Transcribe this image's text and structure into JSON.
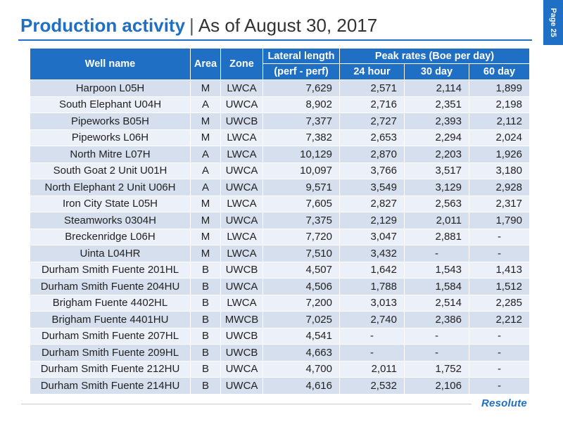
{
  "header": {
    "title_main": "Production activity",
    "title_separator": "|",
    "title_date": "As of August 30, 2017",
    "page_label": "Page 25"
  },
  "table": {
    "columns": {
      "well_name": "Well name",
      "area": "Area",
      "zone": "Zone",
      "lateral_length_line1": "Lateral length",
      "lateral_length_line2": "(perf - perf)",
      "peak_rates": "Peak rates (Boe per day)",
      "h24": "24 hour",
      "d30": "30 day",
      "d60": "60 day"
    },
    "rows": [
      {
        "name": "Harpoon L05H",
        "area": "M",
        "zone": "LWCA",
        "lateral": "7,629",
        "h24": "2,571",
        "d30": "2,114",
        "d60": "1,899"
      },
      {
        "name": "South Elephant U04H",
        "area": "A",
        "zone": "UWCA",
        "lateral": "8,902",
        "h24": "2,716",
        "d30": "2,351",
        "d60": "2,198"
      },
      {
        "name": "Pipeworks B05H",
        "area": "M",
        "zone": "UWCB",
        "lateral": "7,377",
        "h24": "2,727",
        "d30": "2,393",
        "d60": "2,112"
      },
      {
        "name": "Pipeworks L06H",
        "area": "M",
        "zone": "LWCA",
        "lateral": "7,382",
        "h24": "2,653",
        "d30": "2,294",
        "d60": "2,024"
      },
      {
        "name": "North Mitre L07H",
        "area": "A",
        "zone": "LWCA",
        "lateral": "10,129",
        "h24": "2,870",
        "d30": "2,203",
        "d60": "1,926"
      },
      {
        "name": "South Goat 2 Unit U01H",
        "area": "A",
        "zone": "UWCA",
        "lateral": "10,097",
        "h24": "3,766",
        "d30": "3,517",
        "d60": "3,180"
      },
      {
        "name": "North Elephant 2 Unit U06H",
        "area": "A",
        "zone": "UWCA",
        "lateral": "9,571",
        "h24": "3,549",
        "d30": "3,129",
        "d60": "2,928"
      },
      {
        "name": "Iron City State L05H",
        "area": "M",
        "zone": "LWCA",
        "lateral": "7,605",
        "h24": "2,827",
        "d30": "2,563",
        "d60": "2,317"
      },
      {
        "name": "Steamworks 0304H",
        "area": "M",
        "zone": "UWCA",
        "lateral": "7,375",
        "h24": "2,129",
        "d30": "2,011",
        "d60": "1,790"
      },
      {
        "name": "Breckenridge L06H",
        "area": "M",
        "zone": "LWCA",
        "lateral": "7,720",
        "h24": "3,047",
        "d30": "2,881",
        "d60": "-"
      },
      {
        "name": "Uinta L04HR",
        "area": "M",
        "zone": "LWCA",
        "lateral": "7,510",
        "h24": "3,432",
        "d30": "-",
        "d60": "-"
      },
      {
        "name": "Durham Smith Fuente 201HL",
        "area": "B",
        "zone": "UWCB",
        "lateral": "4,507",
        "h24": "1,642",
        "d30": "1,543",
        "d60": "1,413"
      },
      {
        "name": "Durham Smith Fuente 204HU",
        "area": "B",
        "zone": "UWCA",
        "lateral": "4,506",
        "h24": "1,788",
        "d30": "1,584",
        "d60": "1,512"
      },
      {
        "name": "Brigham Fuente 4402HL",
        "area": "B",
        "zone": "LWCA",
        "lateral": "7,200",
        "h24": "3,013",
        "d30": "2,514",
        "d60": "2,285"
      },
      {
        "name": "Brigham Fuente 4401HU",
        "area": "B",
        "zone": "MWCB",
        "lateral": "7,025",
        "h24": "2,740",
        "d30": "2,386",
        "d60": "2,212"
      },
      {
        "name": "Durham Smith Fuente 207HL",
        "area": "B",
        "zone": "UWCB",
        "lateral": "4,541",
        "h24": "-",
        "d30": "-",
        "d60": "-"
      },
      {
        "name": "Durham Smith Fuente 209HL",
        "area": "B",
        "zone": "UWCB",
        "lateral": "4,663",
        "h24": "-",
        "d30": "-",
        "d60": "-"
      },
      {
        "name": "Durham Smith Fuente 212HU",
        "area": "B",
        "zone": "UWCA",
        "lateral": "4,700",
        "h24": "2,011",
        "d30": "1,752",
        "d60": "-"
      },
      {
        "name": "Durham Smith Fuente 214HU",
        "area": "B",
        "zone": "UWCA",
        "lateral": "4,616",
        "h24": "2,532",
        "d30": "2,106",
        "d60": "-"
      }
    ]
  },
  "footer": {
    "logo_text": "Resolute"
  },
  "colors": {
    "accent": "#1f6fc5",
    "row_dark": "#d6dfee",
    "row_light": "#ecf0f8"
  }
}
